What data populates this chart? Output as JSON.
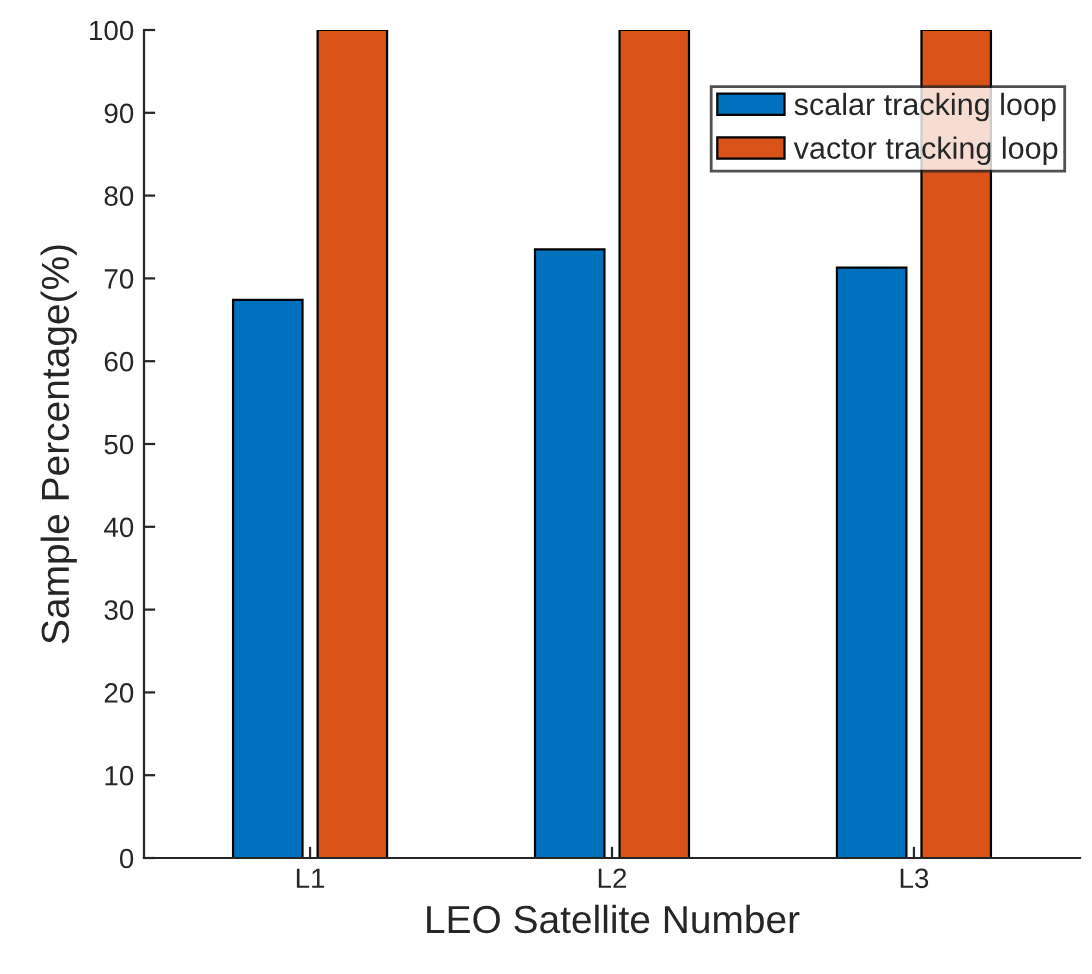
{
  "chart_data": {
    "type": "bar",
    "xlabel": "LEO Satellite Number",
    "ylabel": "Sample Percentage(%)",
    "categories": [
      "L1",
      "L2",
      "L3"
    ],
    "series": [
      {
        "name": "scalar tracking loop",
        "color": "#0072bd",
        "values": [
          67.4,
          73.5,
          71.3
        ]
      },
      {
        "name": "vactor tracking loop",
        "color": "#d95319",
        "values": [
          100,
          100,
          100
        ]
      }
    ],
    "ylim": [
      0,
      100
    ],
    "yticks": [
      0,
      10,
      20,
      30,
      40,
      50,
      60,
      70,
      80,
      90,
      100
    ],
    "grid": false,
    "legend": "top right"
  }
}
